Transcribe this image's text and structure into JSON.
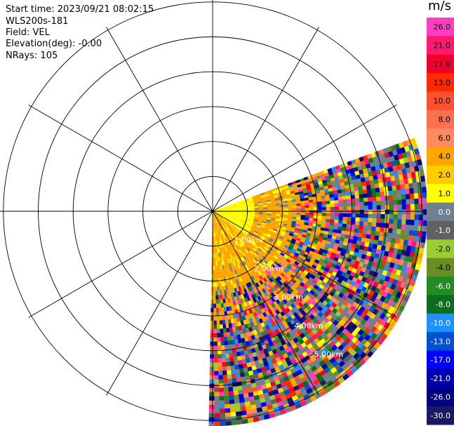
{
  "info": {
    "start_time": "Start time: 2023/09/21 08:02:15",
    "instrument": "WLS200s-181",
    "field": "Field: VEL",
    "elevation": "Elevation(deg): -0.00",
    "nrays": "NRays: 105"
  },
  "colorbar": {
    "unit": "m/s",
    "ticks": [
      "26.0",
      "21.0",
      "17.0",
      "13.0",
      "10.0",
      "8.0",
      "6.0",
      "4.0",
      "2.0",
      "1.0",
      "0.0",
      "-1.0",
      "-2.0",
      "-4.0",
      "-6.0",
      "-8.0",
      "-10.0",
      "-13.0",
      "-17.0",
      "-21.0",
      "-26.0",
      "-30.0"
    ],
    "colors": [
      "#ff3fbf",
      "#ff1a70",
      "#f0002a",
      "#ff2a00",
      "#ff5030",
      "#ff7050",
      "#ff8a60",
      "#ffa500",
      "#ffcc00",
      "#ffff00",
      "#708090",
      "#606060",
      "#9acd32",
      "#6b8e23",
      "#228b22",
      "#0a6e1e",
      "#1e90ff",
      "#0050d0",
      "#0000ff",
      "#0000b0",
      "#000080",
      "#1a1a60"
    ]
  },
  "chart_data": {
    "type": "ppi",
    "field": "VEL",
    "units": "m/s",
    "range_rings_km": [
      1.0,
      2.0,
      3.0,
      4.0,
      5.0
    ],
    "range_ring_labels": [
      "1.00km",
      "2.00km",
      "3.00km",
      "4.00km",
      "5.00km"
    ],
    "spokes_every_deg": 30,
    "scan_sector_deg": [
      70,
      180
    ],
    "near_range_dominant_color": "#ffff00",
    "mid_range_dominant_color": "#ffa500",
    "far_range_pattern": "noisy mixed velocities"
  }
}
